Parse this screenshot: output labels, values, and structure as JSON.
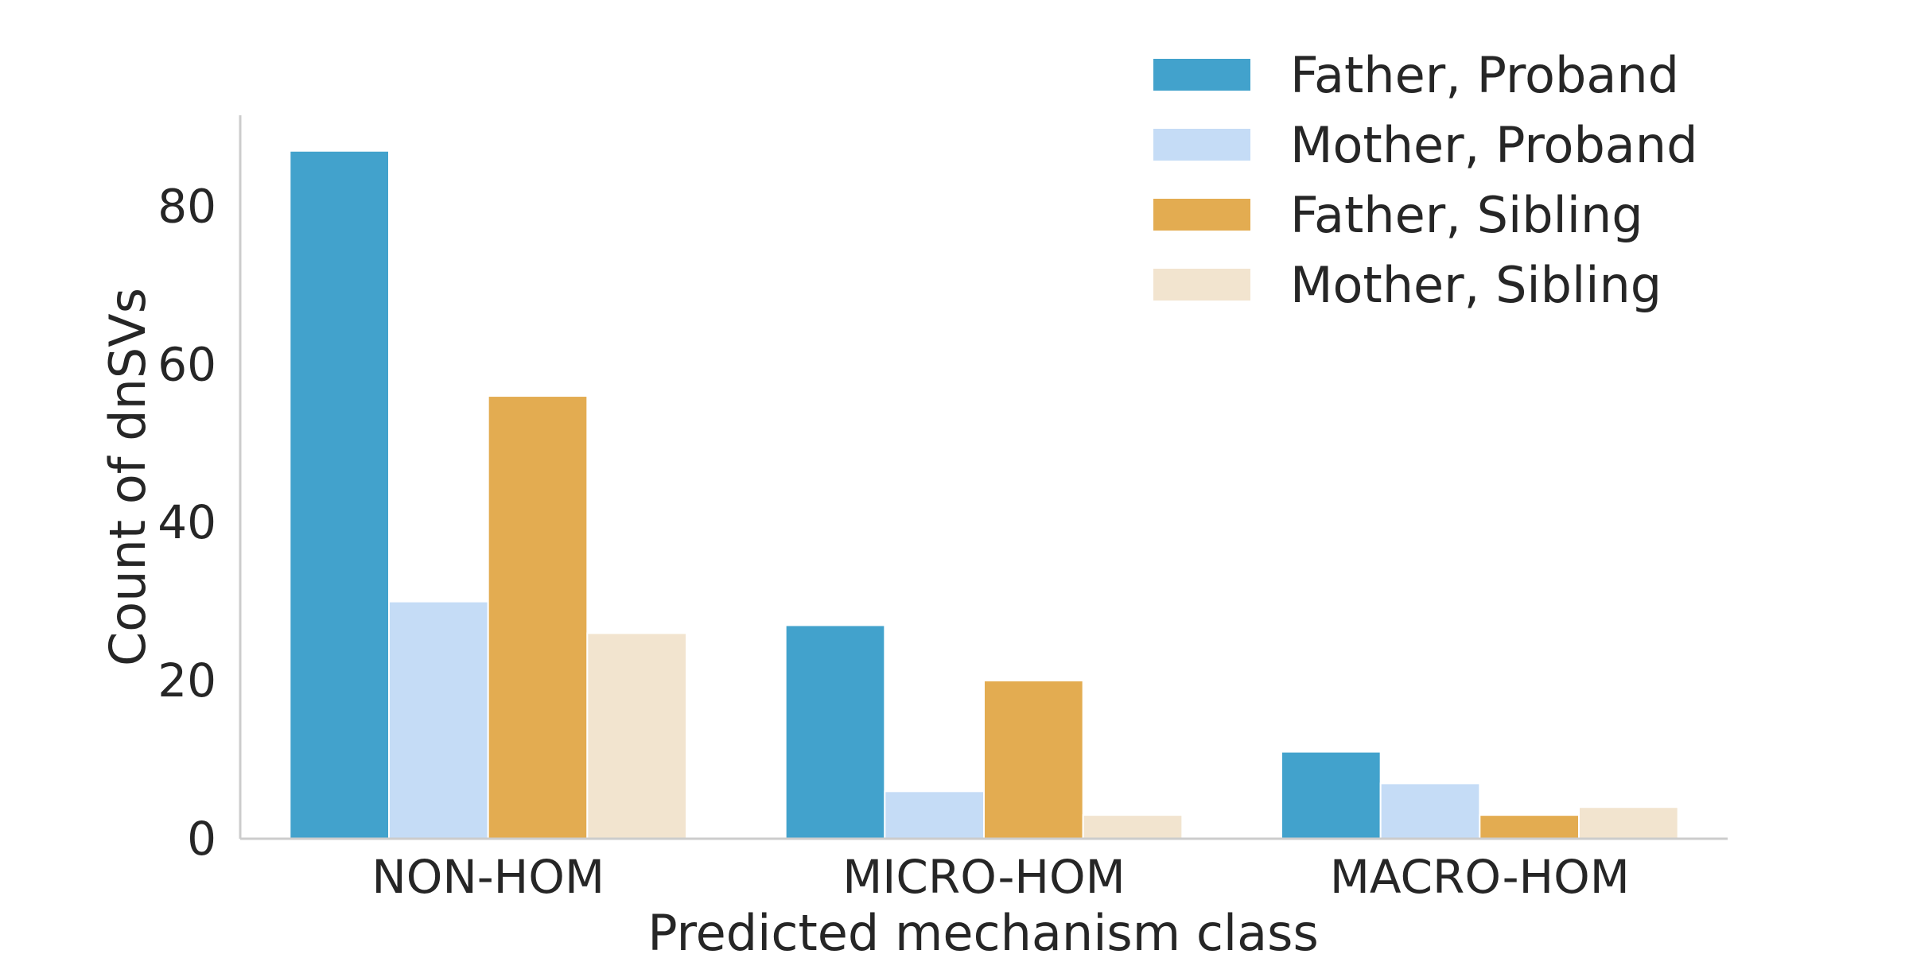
{
  "chart_data": {
    "type": "bar",
    "title": "",
    "xlabel": "Predicted mechanism class",
    "ylabel": "Count of dnSVs",
    "categories": [
      "NON-HOM",
      "MICRO-HOM",
      "MACRO-HOM"
    ],
    "yticks": [
      0,
      20,
      40,
      60,
      80
    ],
    "ylim": [
      0,
      91.5
    ],
    "grid": false,
    "legend_position": "top-right",
    "series": [
      {
        "name": "Father, Proband",
        "color": "#42a2cc",
        "values": [
          87,
          27,
          11
        ]
      },
      {
        "name": "Mother, Proband",
        "color": "#c5dcf6",
        "values": [
          30,
          6,
          7
        ]
      },
      {
        "name": "Father, Sibling",
        "color": "#e3ac51",
        "values": [
          56,
          20,
          3
        ]
      },
      {
        "name": "Mother, Sibling",
        "color": "#f2e4cf",
        "values": [
          26,
          3,
          4
        ]
      }
    ]
  }
}
